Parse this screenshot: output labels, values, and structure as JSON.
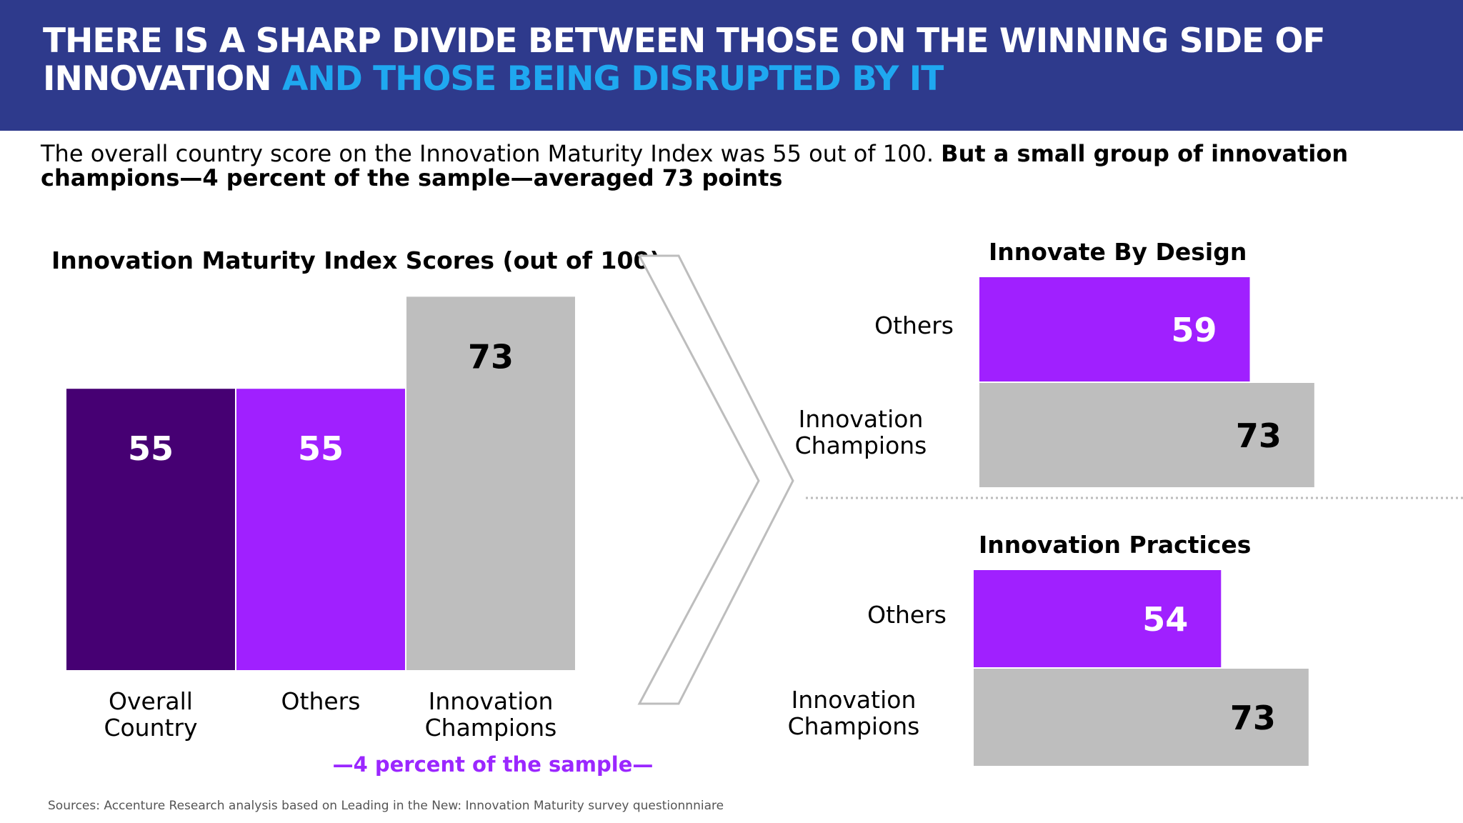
{
  "header": {
    "line1": "THERE IS A SHARP DIVIDE BETWEEN THOSE ON THE WINNING SIDE OF",
    "line2_part1": "INNOVATION",
    "line2_part2": "AND THOSE BEING DISRUPTED BY IT"
  },
  "subtitle": {
    "normal": "The overall country score on the Innovation Maturity Index was 55 out of 100.",
    "bold": "But a small group of innovation champions—4 percent of the sample—averaged 73 points"
  },
  "colors": {
    "header_bg": "#2e3a8c",
    "header_accent": "#1fa8f0",
    "dark_purple": "#460073",
    "purple": "#a020ff",
    "gray": "#bebebe"
  },
  "chart_data": [
    {
      "type": "bar",
      "title": "Innovation Maturity Index Scores (out of 100)",
      "categories": [
        "Overall Country",
        "Others",
        "Innovation Champions"
      ],
      "category_lines": [
        [
          "Overall",
          "Country"
        ],
        [
          "Others"
        ],
        [
          "Innovation",
          "Champions"
        ]
      ],
      "values": [
        55,
        55,
        73
      ],
      "value_labels": [
        "55",
        "55",
        "73"
      ],
      "colors": [
        "#460073",
        "#a020ff",
        "#bebebe"
      ],
      "note": "—4 percent of the sample—"
    },
    {
      "type": "bar",
      "orientation": "horizontal",
      "title": "Innovate By Design",
      "categories": [
        "Others",
        "Innovation Champions"
      ],
      "category_lines": [
        [
          "Others"
        ],
        [
          "Innovation",
          "Champions"
        ]
      ],
      "values": [
        59,
        73
      ],
      "value_labels": [
        "59",
        "73"
      ]
    },
    {
      "type": "bar",
      "orientation": "horizontal",
      "title": "Innovation Practices",
      "categories": [
        "Others",
        "Innovation Champions"
      ],
      "category_lines": [
        [
          "Others"
        ],
        [
          "Innovation",
          "Champions"
        ]
      ],
      "values": [
        54,
        73
      ],
      "value_labels": [
        "54",
        "73"
      ]
    }
  ],
  "source": "Sources: Accenture Research analysis based on Leading in the New: Innovation Maturity survey questionnniare"
}
